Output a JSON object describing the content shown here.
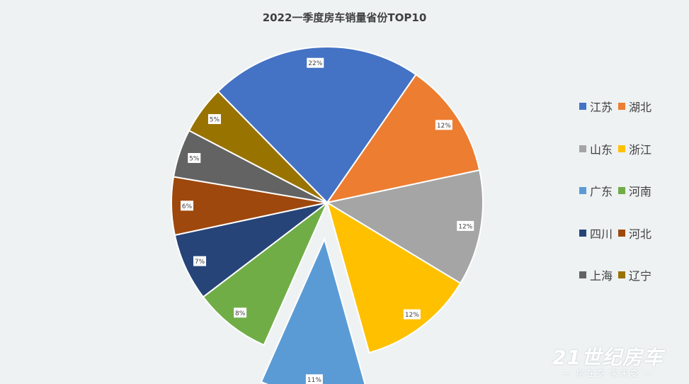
{
  "chart_data": {
    "type": "pie",
    "title": "2022一季度房车销量省份TOP10",
    "legend_position": "right",
    "exploded": [
      "广东"
    ],
    "slices": [
      {
        "name": "江苏",
        "value": 22,
        "label": "22%",
        "color": "#4472c4"
      },
      {
        "name": "湖北",
        "value": 12,
        "label": "12%",
        "color": "#ed7d31"
      },
      {
        "name": "山东",
        "value": 12,
        "label": "12%",
        "color": "#a5a5a5"
      },
      {
        "name": "浙江",
        "value": 12,
        "label": "12%",
        "color": "#ffc000"
      },
      {
        "name": "广东",
        "value": 11,
        "label": "11%",
        "color": "#5b9bd5"
      },
      {
        "name": "河南",
        "value": 8,
        "label": "8%",
        "color": "#70ad47"
      },
      {
        "name": "四川",
        "value": 7,
        "label": "7%",
        "color": "#264478"
      },
      {
        "name": "河北",
        "value": 6,
        "label": "6%",
        "color": "#9e480e"
      },
      {
        "name": "上海",
        "value": 5,
        "label": "5%",
        "color": "#636363"
      },
      {
        "name": "辽宁",
        "value": 5,
        "label": "5%",
        "color": "#997300"
      }
    ]
  },
  "watermark": {
    "logo": "21世纪房车",
    "tagline": "— 房在变·家未变 —"
  }
}
